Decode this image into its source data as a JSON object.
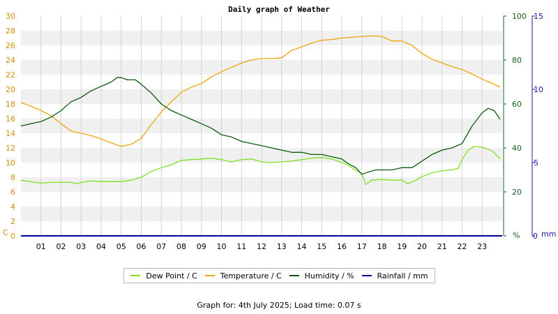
{
  "chart_data": {
    "type": "line",
    "title": "Daily graph of Weather",
    "x_tick_labels": [
      "01",
      "02",
      "03",
      "04",
      "05",
      "06",
      "07",
      "08",
      "09",
      "10",
      "11",
      "12",
      "13",
      "14",
      "15",
      "16",
      "17",
      "18",
      "19",
      "20",
      "21",
      "22",
      "23"
    ],
    "xlim": [
      0,
      24
    ],
    "y_left": {
      "unit_label": "C",
      "range": [
        0,
        30
      ],
      "ticks": [
        0,
        2,
        4,
        6,
        8,
        10,
        12,
        14,
        16,
        18,
        20,
        22,
        24,
        26,
        28,
        30
      ]
    },
    "y_humidity": {
      "unit_label": "%",
      "range": [
        0,
        100
      ],
      "ticks": [
        0,
        20,
        40,
        60,
        80,
        100
      ]
    },
    "y_rainfall": {
      "unit_label": "mm",
      "range": [
        0,
        15
      ],
      "ticks": [
        0,
        5,
        10,
        15
      ]
    },
    "grid": true,
    "series": [
      {
        "name": "Dew Point / C",
        "color": "#7ee021",
        "axis": "left",
        "x": [
          0,
          0.5,
          1,
          1.5,
          2,
          2.5,
          2.8,
          3,
          3.5,
          4,
          4.5,
          5,
          5.5,
          6,
          6.5,
          7,
          7.5,
          8,
          8.5,
          9,
          9.5,
          10,
          10.5,
          11,
          11.5,
          12,
          12.5,
          13,
          13.5,
          14,
          14.5,
          15,
          15.5,
          16,
          16.3,
          16.6,
          17,
          17.2,
          17.5,
          18,
          18.5,
          19,
          19.3,
          19.7,
          20,
          20.5,
          21,
          21.5,
          21.8,
          22,
          22.3,
          22.6,
          23,
          23.5,
          23.9
        ],
        "y": [
          7.6,
          7.4,
          7.2,
          7.3,
          7.3,
          7.3,
          7.1,
          7.3,
          7.5,
          7.4,
          7.4,
          7.4,
          7.6,
          8.0,
          8.8,
          9.3,
          9.7,
          10.3,
          10.4,
          10.5,
          10.6,
          10.4,
          10.1,
          10.4,
          10.5,
          10.1,
          10.0,
          10.1,
          10.2,
          10.4,
          10.6,
          10.7,
          10.5,
          10.0,
          9.7,
          9.1,
          8.5,
          7.0,
          7.6,
          7.7,
          7.6,
          7.6,
          7.1,
          7.6,
          8.1,
          8.6,
          8.9,
          9.0,
          9.2,
          10.4,
          11.7,
          12.2,
          12.1,
          11.6,
          10.5
        ]
      },
      {
        "name": "Temperature / C",
        "color": "#f0a30a",
        "axis": "left",
        "x": [
          0,
          0.5,
          1,
          1.5,
          2,
          2.5,
          3,
          3.5,
          4,
          4.5,
          5,
          5.5,
          6,
          6.5,
          7,
          7.5,
          8,
          8.5,
          9,
          9.5,
          10,
          10.5,
          11,
          11.5,
          12,
          12.5,
          13,
          13.5,
          14,
          14.5,
          15,
          15.5,
          16,
          16.5,
          17,
          17.5,
          18,
          18.5,
          19,
          19.5,
          20,
          20.5,
          21,
          21.5,
          22,
          22.5,
          23,
          23.5,
          23.9
        ],
        "y": [
          18.2,
          17.7,
          17.1,
          16.4,
          15.3,
          14.3,
          14.0,
          13.7,
          13.2,
          12.7,
          12.2,
          12.5,
          13.3,
          15.2,
          16.9,
          18.3,
          19.6,
          20.3,
          20.8,
          21.7,
          22.4,
          23.0,
          23.6,
          24.0,
          24.2,
          24.2,
          24.3,
          25.3,
          25.8,
          26.3,
          26.7,
          26.8,
          27.0,
          27.1,
          27.2,
          27.3,
          27.2,
          26.6,
          26.6,
          26.0,
          24.9,
          24.1,
          23.6,
          23.1,
          22.7,
          22.1,
          21.4,
          20.8,
          20.3
        ]
      },
      {
        "name": "Humidity / %",
        "color": "#0b5a0b",
        "axis": "humidity",
        "x": [
          0,
          0.5,
          1,
          1.5,
          2,
          2.5,
          3,
          3.5,
          4,
          4.5,
          4.8,
          5,
          5.3,
          5.7,
          6,
          6.5,
          7,
          7.5,
          8,
          8.5,
          9,
          9.5,
          10,
          10.5,
          11,
          11.5,
          12,
          12.5,
          13,
          13.5,
          14,
          14.5,
          15,
          15.5,
          16,
          16.3,
          16.7,
          17,
          17.3,
          17.7,
          18,
          18.5,
          19,
          19.5,
          20,
          20.5,
          21,
          21.5,
          22,
          22.5,
          23,
          23.3,
          23.6,
          23.9
        ],
        "y": [
          50,
          51,
          52,
          54,
          57,
          61,
          63,
          66,
          68,
          70,
          72,
          72,
          71,
          71,
          69,
          65,
          60,
          57,
          55,
          53,
          51,
          49,
          46,
          45,
          43,
          42,
          41,
          40,
          39,
          38,
          38,
          37,
          37,
          36,
          35,
          33,
          31,
          28,
          29,
          30,
          30,
          30,
          31,
          31,
          34,
          37,
          39,
          40,
          42,
          50,
          56,
          58,
          57,
          53
        ]
      },
      {
        "name": "Rainfall / mm",
        "color": "#00009c",
        "axis": "rainfall",
        "x": [
          0,
          24
        ],
        "y": [
          0,
          0
        ]
      }
    ]
  },
  "legend": {
    "items": [
      {
        "label": "Dew Point / C",
        "color": "#7ee021"
      },
      {
        "label": "Temperature / C",
        "color": "#f0a30a"
      },
      {
        "label": "Humidity / %",
        "color": "#0b5a0b"
      },
      {
        "label": "Rainfall / mm",
        "color": "#00009c"
      }
    ]
  },
  "footer": {
    "text": "Graph for: 4th July 2025; Load time: 0.07 s"
  }
}
